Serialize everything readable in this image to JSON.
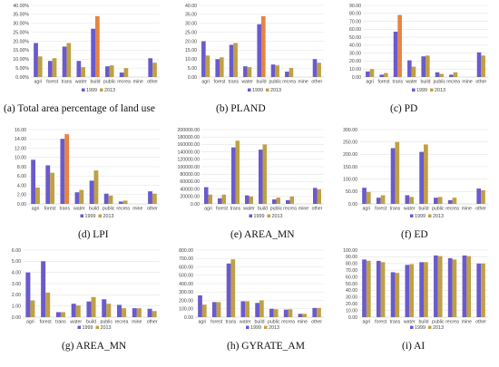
{
  "colors": {
    "s1999": "#6a5acd",
    "s2013": "#bfa044",
    "highlight": "#e6843f",
    "grid": "#e3e3e3",
    "axis": "#bdbdbd"
  },
  "captions": [
    "(a) Total area percentage of land use",
    "(b) PLAND",
    "(c) PD",
    "(d) LPI",
    "(e) AREA_MN",
    "(f) ED",
    "(g) AREA_MN",
    "(h) GYRATE_AM",
    "(i) AI"
  ],
  "chart_data": [
    {
      "type": "bar",
      "categories": [
        "agri",
        "forest",
        "trans",
        "water",
        "build",
        "public",
        "recrea",
        "mine",
        "other"
      ],
      "series": [
        {
          "name": "1999",
          "values": [
            19,
            9,
            17,
            9,
            27,
            6,
            2.5,
            0,
            10.5
          ]
        },
        {
          "name": "2013",
          "values": [
            11.5,
            10.5,
            19,
            5.5,
            34,
            6.5,
            5,
            0,
            8
          ]
        }
      ],
      "ylim": [
        0,
        40
      ],
      "yticks": [
        "0.00%",
        "5.00%",
        "10.00%",
        "15.00%",
        "20.00%",
        "25.00%",
        "30.00%",
        "35.00%",
        "40.00%"
      ],
      "tickvals": [
        0,
        5,
        10,
        15,
        20,
        25,
        30,
        35,
        40
      ],
      "legend": "bottom"
    },
    {
      "type": "bar",
      "categories": [
        "agri",
        "forest",
        "trans",
        "water",
        "build",
        "public",
        "recrea",
        "mine",
        "other"
      ],
      "series": [
        {
          "name": "1999",
          "values": [
            20,
            10,
            18,
            6,
            29.5,
            7,
            3,
            0,
            10
          ]
        },
        {
          "name": "2013",
          "values": [
            12,
            11,
            19,
            5.5,
            34,
            6.5,
            5,
            0,
            8
          ]
        }
      ],
      "ylim": [
        0,
        40
      ],
      "yticks": [
        "0.00",
        "5.00",
        "10.00",
        "15.00",
        "20.00",
        "25.00",
        "30.00",
        "35.00",
        "40.00"
      ],
      "tickvals": [
        0,
        5,
        10,
        15,
        20,
        25,
        30,
        35,
        40
      ],
      "legend": "bottom"
    },
    {
      "type": "bar",
      "categories": [
        "agri",
        "forest",
        "trans",
        "water",
        "build",
        "public",
        "recrea",
        "mine",
        "other"
      ],
      "series": [
        {
          "name": "1999",
          "values": [
            7,
            3,
            57,
            21,
            26,
            6,
            3,
            0,
            31
          ]
        },
        {
          "name": "2013",
          "values": [
            10,
            5,
            78,
            13,
            27,
            4,
            6,
            0,
            27
          ]
        }
      ],
      "ylim": [
        0,
        90
      ],
      "yticks": [
        "0.00",
        "10.00",
        "20.00",
        "30.00",
        "40.00",
        "50.00",
        "60.00",
        "70.00",
        "80.00",
        "90.00"
      ],
      "tickvals": [
        0,
        10,
        20,
        30,
        40,
        50,
        60,
        70,
        80,
        90
      ],
      "legend": "bottom"
    },
    {
      "type": "bar",
      "categories": [
        "agri",
        "forest",
        "trans",
        "water",
        "build",
        "public",
        "recrea",
        "mine",
        "other"
      ],
      "series": [
        {
          "name": "1999",
          "values": [
            9.5,
            8.3,
            14,
            2.5,
            5,
            2.2,
            0.5,
            0,
            2.7
          ]
        },
        {
          "name": "2013",
          "values": [
            3.5,
            6.7,
            15,
            3,
            7.2,
            1.8,
            0.7,
            0,
            2.2
          ]
        }
      ],
      "ylim": [
        0,
        16
      ],
      "yticks": [
        "0.00",
        "2.00",
        "4.00",
        "6.00",
        "8.00",
        "10.00",
        "12.00",
        "14.00",
        "16.00"
      ],
      "tickvals": [
        0,
        2,
        4,
        6,
        8,
        10,
        12,
        14,
        16
      ],
      "legend": "bottom"
    },
    {
      "type": "bar",
      "categories": [
        "agri",
        "forest",
        "trans",
        "water",
        "build",
        "public",
        "recrea",
        "mine",
        "other"
      ],
      "series": [
        {
          "name": "1999",
          "values": [
            45000,
            15000,
            152000,
            23000,
            146000,
            12000,
            10000,
            0,
            43000
          ]
        },
        {
          "name": "2013",
          "values": [
            25000,
            25000,
            170000,
            20000,
            160000,
            17000,
            20000,
            0,
            39000
          ]
        }
      ],
      "ylim": [
        0,
        200000
      ],
      "yticks": [
        "0.00",
        "20000.00",
        "40000.00",
        "60000.00",
        "80000.00",
        "100000.00",
        "120000.00",
        "140000.00",
        "160000.00",
        "180000.00",
        "200000.00"
      ],
      "tickvals": [
        0,
        20000,
        40000,
        60000,
        80000,
        100000,
        120000,
        140000,
        160000,
        180000,
        200000
      ],
      "legend": "bottom"
    },
    {
      "type": "bar",
      "categories": [
        "agri",
        "forest",
        "trans",
        "water",
        "build",
        "public",
        "recrea",
        "mine",
        "other"
      ],
      "series": [
        {
          "name": "1999",
          "values": [
            65,
            25,
            225,
            35,
            210,
            25,
            15,
            0,
            62
          ]
        },
        {
          "name": "2013",
          "values": [
            48,
            35,
            250,
            28,
            240,
            28,
            25,
            0,
            55
          ]
        }
      ],
      "ylim": [
        0,
        300
      ],
      "yticks": [
        "0.00",
        "50.00",
        "100.00",
        "150.00",
        "200.00",
        "250.00",
        "300.00"
      ],
      "tickvals": [
        0,
        50,
        100,
        150,
        200,
        250,
        300
      ],
      "legend": "bottom"
    },
    {
      "type": "bar",
      "categories": [
        "agri",
        "forest",
        "trans",
        "water",
        "build",
        "public",
        "recrea",
        "mine",
        "other"
      ],
      "series": [
        {
          "name": "1999",
          "values": [
            4,
            5,
            0.45,
            1.2,
            1.4,
            1.6,
            1.1,
            0.8,
            0.75
          ]
        },
        {
          "name": "2013",
          "values": [
            1.5,
            2.2,
            0.45,
            1.05,
            1.8,
            1.2,
            0.8,
            0.8,
            0.55
          ]
        }
      ],
      "ylim": [
        0,
        6
      ],
      "yticks": [
        "0.00",
        "1.00",
        "2.00",
        "3.00",
        "4.00",
        "5.00",
        "6.00"
      ],
      "tickvals": [
        0,
        1,
        2,
        3,
        4,
        5,
        6
      ],
      "legend": "bottom"
    },
    {
      "type": "bar",
      "categories": [
        "agri",
        "forest",
        "trans",
        "water",
        "build",
        "public",
        "recrea",
        "mine",
        "other"
      ],
      "series": [
        {
          "name": "1999",
          "values": [
            260,
            180,
            640,
            190,
            170,
            100,
            90,
            40,
            110
          ]
        },
        {
          "name": "2013",
          "values": [
            150,
            180,
            690,
            190,
            200,
            95,
            95,
            40,
            110
          ]
        }
      ],
      "ylim": [
        0,
        800
      ],
      "yticks": [
        "0.00",
        "100.00",
        "200.00",
        "300.00",
        "400.00",
        "500.00",
        "600.00",
        "700.00",
        "800.00"
      ],
      "tickvals": [
        0,
        100,
        200,
        300,
        400,
        500,
        600,
        700,
        800
      ],
      "legend": "bottom"
    },
    {
      "type": "bar",
      "categories": [
        "agri",
        "forest",
        "trans",
        "water",
        "build",
        "public",
        "recrea",
        "mine",
        "other"
      ],
      "series": [
        {
          "name": "1999",
          "values": [
            86,
            84,
            67,
            78,
            82,
            92,
            88,
            92,
            80
          ]
        },
        {
          "name": "2013",
          "values": [
            84,
            82,
            66,
            79,
            82,
            91,
            86,
            91,
            80
          ]
        }
      ],
      "ylim": [
        0,
        100
      ],
      "yticks": [
        "0.00",
        "10.00",
        "20.00",
        "30.00",
        "40.00",
        "50.00",
        "60.00",
        "70.00",
        "80.00",
        "90.00",
        "100.00"
      ],
      "tickvals": [
        0,
        10,
        20,
        30,
        40,
        50,
        60,
        70,
        80,
        90,
        100
      ],
      "legend": "bottom"
    }
  ]
}
